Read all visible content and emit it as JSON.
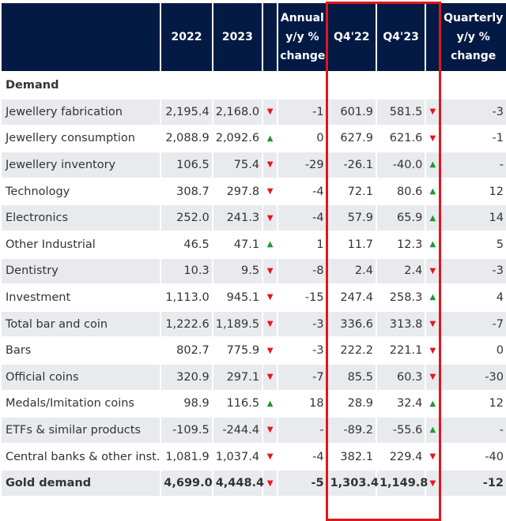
{
  "header": {
    "label": "",
    "c2022": "2022",
    "c2023": "2023",
    "annual": "Annual y/y % change",
    "q422": "Q4'22",
    "q423": "Q4'23",
    "quarterly": "Quarterly y/y % change"
  },
  "section": "Demand",
  "colors": {
    "header_bg": "#031a44",
    "up": "#1a9a2a",
    "down": "#e8141c",
    "highlight": "#e0161e",
    "stripe": "#e9eaee"
  },
  "rows": [
    {
      "label": "Jewellery fabrication",
      "y2022": "2,195.4",
      "y2023": "2,168.0",
      "a_dir": "down",
      "annual": "-1",
      "q422": "601.9",
      "q423": "581.5",
      "q_dir": "down",
      "quarterly": "-3"
    },
    {
      "label": "Jewellery consumption",
      "y2022": "2,088.9",
      "y2023": "2,092.6",
      "a_dir": "up",
      "annual": "0",
      "q422": "627.9",
      "q423": "621.6",
      "q_dir": "down",
      "quarterly": "-1"
    },
    {
      "label": "Jewellery inventory",
      "y2022": "106.5",
      "y2023": "75.4",
      "a_dir": "down",
      "annual": "-29",
      "q422": "-26.1",
      "q423": "-40.0",
      "q_dir": "up",
      "quarterly": "-"
    },
    {
      "label": "Technology",
      "y2022": "308.7",
      "y2023": "297.8",
      "a_dir": "down",
      "annual": "-4",
      "q422": "72.1",
      "q423": "80.6",
      "q_dir": "up",
      "quarterly": "12"
    },
    {
      "label": "Electronics",
      "y2022": "252.0",
      "y2023": "241.3",
      "a_dir": "down",
      "annual": "-4",
      "q422": "57.9",
      "q423": "65.9",
      "q_dir": "up",
      "quarterly": "14"
    },
    {
      "label": "Other Industrial",
      "y2022": "46.5",
      "y2023": "47.1",
      "a_dir": "up",
      "annual": "1",
      "q422": "11.7",
      "q423": "12.3",
      "q_dir": "up",
      "quarterly": "5"
    },
    {
      "label": "Dentistry",
      "y2022": "10.3",
      "y2023": "9.5",
      "a_dir": "down",
      "annual": "-8",
      "q422": "2.4",
      "q423": "2.4",
      "q_dir": "down",
      "quarterly": "-3"
    },
    {
      "label": "Investment",
      "y2022": "1,113.0",
      "y2023": "945.1",
      "a_dir": "down",
      "annual": "-15",
      "q422": "247.4",
      "q423": "258.3",
      "q_dir": "up",
      "quarterly": "4"
    },
    {
      "label": "Total bar and coin",
      "y2022": "1,222.6",
      "y2023": "1,189.5",
      "a_dir": "down",
      "annual": "-3",
      "q422": "336.6",
      "q423": "313.8",
      "q_dir": "down",
      "quarterly": "-7"
    },
    {
      "label": "Bars",
      "y2022": "802.7",
      "y2023": "775.9",
      "a_dir": "down",
      "annual": "-3",
      "q422": "222.2",
      "q423": "221.1",
      "q_dir": "down",
      "quarterly": "0"
    },
    {
      "label": "Official coins",
      "y2022": "320.9",
      "y2023": "297.1",
      "a_dir": "down",
      "annual": "-7",
      "q422": "85.5",
      "q423": "60.3",
      "q_dir": "down",
      "quarterly": "-30"
    },
    {
      "label": "Medals/Imitation coins",
      "y2022": "98.9",
      "y2023": "116.5",
      "a_dir": "up",
      "annual": "18",
      "q422": "28.9",
      "q423": "32.4",
      "q_dir": "up",
      "quarterly": "12"
    },
    {
      "label": "ETFs & similar products",
      "y2022": "-109.5",
      "y2023": "-244.4",
      "a_dir": "down",
      "annual": "-",
      "q422": "-89.2",
      "q423": "-55.6",
      "q_dir": "up",
      "quarterly": "-"
    },
    {
      "label": "Central banks & other inst.",
      "y2022": "1,081.9",
      "y2023": "1,037.4",
      "a_dir": "down",
      "annual": "-4",
      "q422": "382.1",
      "q423": "229.4",
      "q_dir": "down",
      "quarterly": "-40"
    },
    {
      "label": "Gold demand",
      "y2022": "4,699.0",
      "y2023": "4,448.4",
      "a_dir": "down",
      "annual": "-5",
      "q422": "1,303.4",
      "q423": "1,149.8",
      "q_dir": "down",
      "quarterly": "-12"
    }
  ]
}
